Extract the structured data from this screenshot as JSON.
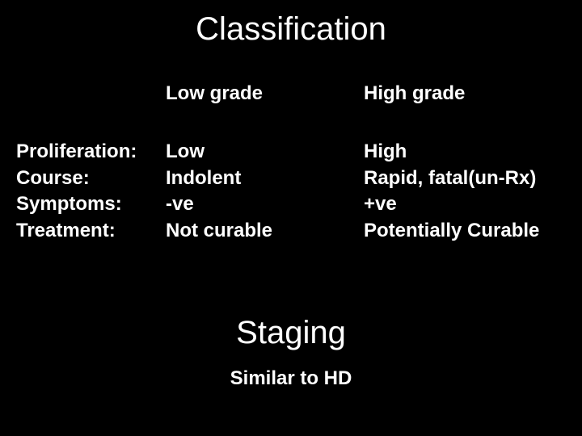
{
  "title": "Classification",
  "headers": {
    "blank": "",
    "low": "Low grade",
    "high": "High grade"
  },
  "rows": [
    {
      "label": "Proliferation:",
      "low": "Low",
      "high": "High"
    },
    {
      "label": "Course:",
      "low": "Indolent",
      "high": "Rapid, fatal(un-Rx)"
    },
    {
      "label": "Symptoms:",
      "low": "-ve",
      "high": "+ve"
    },
    {
      "label": "Treatment:",
      "low": "Not curable",
      "high": "Potentially Curable"
    }
  ],
  "subtitle": "Staging",
  "footer": "Similar to HD",
  "style": {
    "background_color": "#000000",
    "text_color": "#ffffff",
    "title_fontsize": 40,
    "body_fontsize": 24,
    "font_family": "Arial"
  }
}
